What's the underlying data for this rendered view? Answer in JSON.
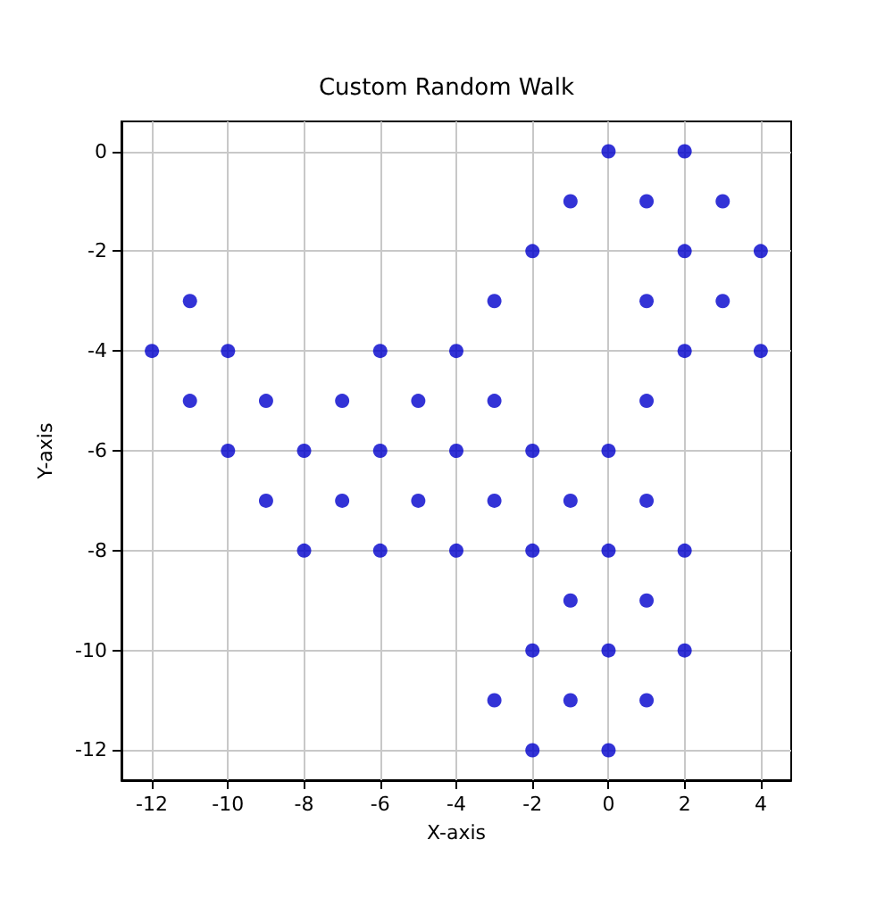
{
  "chart_data": {
    "type": "scatter",
    "title": "Custom Random Walk",
    "xlabel": "X-axis",
    "ylabel": "Y-axis",
    "x": [
      -12,
      -11,
      -11,
      -10,
      -10,
      -9,
      -9,
      -8,
      -8,
      -7,
      -7,
      -6,
      -6,
      -6,
      -5,
      -5,
      -4,
      -4,
      -4,
      -3,
      -3,
      -3,
      -3,
      -2,
      -2,
      -2,
      -2,
      -2,
      -1,
      -1,
      -1,
      -1,
      0,
      0,
      0,
      0,
      0,
      1,
      1,
      1,
      1,
      1,
      1,
      2,
      2,
      2,
      2,
      2,
      3,
      3,
      4,
      4
    ],
    "values": [
      -4,
      -3,
      -5,
      -4,
      -6,
      -5,
      -7,
      -6,
      -8,
      -5,
      -7,
      -4,
      -6,
      -8,
      -5,
      -7,
      -4,
      -6,
      -8,
      -3,
      -5,
      -7,
      -11,
      -2,
      -6,
      -8,
      -10,
      -12,
      -1,
      -7,
      -9,
      -11,
      0,
      -6,
      -8,
      -10,
      -12,
      -1,
      -3,
      -5,
      -7,
      -9,
      -11,
      0,
      -2,
      -4,
      -8,
      -10,
      -1,
      -3,
      -2,
      -4
    ],
    "color": "#0000cc",
    "marker": "circle",
    "xlim": [
      -12.8,
      4.8
    ],
    "xticks": [
      -12,
      -10,
      -8,
      -6,
      -4,
      -2,
      0,
      2,
      4
    ],
    "ylim": [
      -12.6,
      0.6
    ],
    "yticks": [
      -12,
      -10,
      -8,
      -6,
      -4,
      -2,
      0
    ],
    "grid": true
  }
}
